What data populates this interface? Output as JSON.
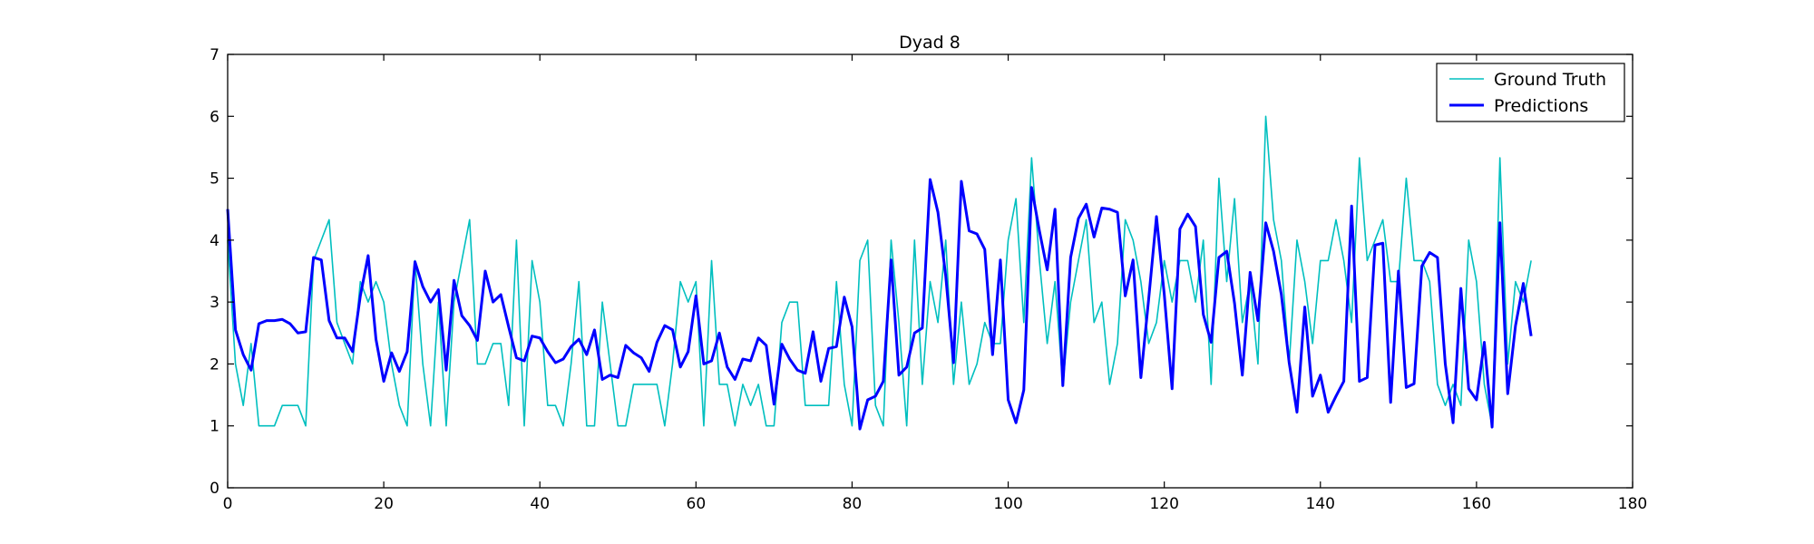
{
  "chart_data": {
    "type": "line",
    "title": "Dyad 8",
    "xlabel": "",
    "ylabel": "",
    "xlim": [
      0,
      180
    ],
    "ylim": [
      0,
      7
    ],
    "xticks": [
      "0",
      "20",
      "40",
      "60",
      "80",
      "100",
      "120",
      "140",
      "160",
      "180"
    ],
    "yticks": [
      "0",
      "1",
      "2",
      "3",
      "4",
      "5",
      "6",
      "7"
    ],
    "grid": false,
    "legend_position": "top-right",
    "series": [
      {
        "name": "Ground Truth",
        "color": "#00bfbf",
        "values": [
          4.0,
          2.0,
          1.33,
          2.33,
          1.0,
          1.0,
          1.0,
          1.33,
          1.33,
          1.33,
          1.0,
          3.67,
          4.0,
          4.33,
          2.67,
          2.33,
          2.0,
          3.33,
          3.0,
          3.33,
          3.0,
          2.0,
          1.33,
          1.0,
          3.67,
          2.0,
          1.0,
          3.0,
          1.0,
          3.0,
          3.67,
          4.33,
          2.0,
          2.0,
          2.33,
          2.33,
          1.33,
          4.0,
          1.0,
          3.67,
          3.0,
          1.33,
          1.33,
          1.0,
          2.0,
          3.33,
          1.0,
          1.0,
          3.0,
          2.0,
          1.0,
          1.0,
          1.67,
          1.67,
          1.67,
          1.67,
          1.0,
          2.0,
          3.33,
          3.0,
          3.33,
          1.0,
          3.67,
          1.67,
          1.67,
          1.0,
          1.67,
          1.33,
          1.67,
          1.0,
          1.0,
          2.67,
          3.0,
          3.0,
          1.33,
          1.33,
          1.33,
          1.33,
          3.33,
          1.67,
          1.0,
          3.67,
          4.0,
          1.33,
          1.0,
          4.0,
          2.67,
          1.0,
          4.0,
          1.67,
          3.33,
          2.67,
          4.0,
          1.67,
          3.0,
          1.67,
          2.0,
          2.67,
          2.33,
          2.33,
          4.0,
          4.67,
          2.67,
          5.33,
          3.67,
          2.33,
          3.33,
          1.67,
          3.0,
          3.67,
          4.33,
          2.67,
          3.0,
          1.67,
          2.33,
          4.33,
          4.0,
          3.33,
          2.33,
          2.67,
          3.67,
          3.0,
          3.67,
          3.67,
          3.0,
          4.0,
          1.67,
          5.0,
          3.33,
          4.67,
          2.67,
          3.33,
          2.0,
          6.0,
          4.33,
          3.67,
          2.0,
          4.0,
          3.33,
          2.33,
          3.67,
          3.67,
          4.33,
          3.67,
          2.67,
          5.33,
          3.67,
          4.0,
          4.33,
          3.33,
          3.33,
          5.0,
          3.67,
          3.67,
          3.33,
          1.67,
          1.33,
          1.67,
          1.33,
          4.0,
          3.33,
          1.67,
          1.0,
          5.33,
          2.0,
          3.33,
          3.0,
          3.67
        ]
      },
      {
        "name": "Predictions",
        "color": "#0000ff",
        "values": [
          4.5,
          2.55,
          2.15,
          1.9,
          2.65,
          2.7,
          2.7,
          2.72,
          2.65,
          2.5,
          2.52,
          3.72,
          3.68,
          2.7,
          2.42,
          2.42,
          2.2,
          3.1,
          3.75,
          2.4,
          1.72,
          2.18,
          1.88,
          2.2,
          3.65,
          3.25,
          3.0,
          3.2,
          1.9,
          3.35,
          2.78,
          2.62,
          2.38,
          3.5,
          3.0,
          3.12,
          2.6,
          2.1,
          2.05,
          2.45,
          2.42,
          2.2,
          2.02,
          2.08,
          2.28,
          2.4,
          2.15,
          2.55,
          1.75,
          1.82,
          1.78,
          2.3,
          2.18,
          2.1,
          1.88,
          2.35,
          2.62,
          2.55,
          1.95,
          2.2,
          3.1,
          2.0,
          2.05,
          2.5,
          1.95,
          1.75,
          2.08,
          2.05,
          2.42,
          2.3,
          1.35,
          2.32,
          2.08,
          1.9,
          1.85,
          2.52,
          1.72,
          2.25,
          2.28,
          3.08,
          2.6,
          0.95,
          1.42,
          1.48,
          1.72,
          3.68,
          1.82,
          1.95,
          2.5,
          2.58,
          4.98,
          4.45,
          3.42,
          2.02,
          4.95,
          4.15,
          4.1,
          3.85,
          2.15,
          3.68,
          1.42,
          1.05,
          1.58,
          4.85,
          4.15,
          3.52,
          4.5,
          1.65,
          3.72,
          4.35,
          4.58,
          4.05,
          4.52,
          4.5,
          4.45,
          3.1,
          3.68,
          1.78,
          3.05,
          4.38,
          3.12,
          1.6,
          4.18,
          4.42,
          4.22,
          2.8,
          2.35,
          3.72,
          3.82,
          2.98,
          1.82,
          3.48,
          2.7,
          4.28,
          3.82,
          3.12,
          2.02,
          1.22,
          2.92,
          1.48,
          1.82,
          1.22,
          1.48,
          1.72,
          4.55,
          1.72,
          1.78,
          3.92,
          3.95,
          1.38,
          3.5,
          1.62,
          1.68,
          3.58,
          3.8,
          3.72,
          2.0,
          1.05,
          3.22,
          1.6,
          1.42,
          2.35,
          0.98,
          4.28,
          1.52,
          2.62,
          3.3,
          2.45
        ]
      }
    ]
  }
}
